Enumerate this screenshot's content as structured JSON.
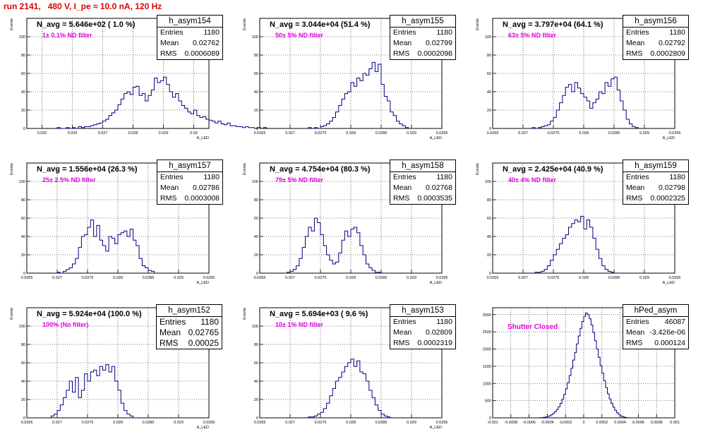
{
  "page_title": "run 2141,   480 V, I_pe ≈ 10.0 nA, 120 Hz",
  "colors": {
    "title": "#e00000",
    "histogram": "#000080",
    "annotation": "#e000e0",
    "grid": "#000000"
  },
  "chart_data": [
    {
      "type": "bar",
      "name": "h_asym154",
      "navg": "N_avg = 5.646e+02 ( 1.0 %)",
      "filter": "1± 0.1% ND filter",
      "stats": {
        "entries_label": "Entries",
        "entries": "1180",
        "mean_label": "Mean",
        "mean": "0.02762",
        "rms_label": "RMS",
        "rms": "0.0006089"
      },
      "xlabel": "A_LED",
      "ylabel": "Events",
      "xlim": [
        0.0245,
        0.0305
      ],
      "ylim": [
        0,
        120
      ],
      "xticks": [
        {
          "v": 0.025,
          "t": "0.025"
        },
        {
          "v": 0.026,
          "t": "0.026"
        },
        {
          "v": 0.027,
          "t": "0.027"
        },
        {
          "v": 0.028,
          "t": "0.028"
        },
        {
          "v": 0.029,
          "t": "0.029"
        },
        {
          "v": 0.03,
          "t": "0.03"
        }
      ],
      "yticks": [
        {
          "v": 0,
          "t": "0"
        },
        {
          "v": 20,
          "t": "20"
        },
        {
          "v": 40,
          "t": "40"
        },
        {
          "v": 60,
          "t": "60"
        },
        {
          "v": 80,
          "t": "80"
        },
        {
          "v": 100,
          "t": "100"
        }
      ],
      "bins": {
        "start": 0.0255,
        "width": 0.0001,
        "values": [
          1,
          0,
          0,
          1,
          0,
          1,
          0,
          2,
          1,
          2,
          2,
          3,
          4,
          5,
          6,
          8,
          10,
          14,
          17,
          20,
          26,
          32,
          38,
          40,
          37,
          45,
          46,
          36,
          38,
          30,
          36,
          42,
          55,
          50,
          52,
          56,
          48,
          40,
          34,
          38,
          30,
          25,
          22,
          18,
          16,
          20,
          14,
          12,
          13,
          10,
          9,
          8,
          6,
          8,
          5,
          4,
          6,
          3,
          3,
          2,
          2,
          1,
          2,
          1,
          1,
          0,
          1,
          0,
          1,
          0
        ]
      }
    },
    {
      "type": "bar",
      "name": "h_asym155",
      "navg": "N_avg = 3.044e+04 (51.4 %)",
      "filter": "50± 5% ND filter",
      "stats": {
        "entries_label": "Entries",
        "entries": "1180",
        "mean_label": "Mean",
        "mean": "0.02799",
        "rms_label": "RMS",
        "rms": "0.0002098"
      },
      "xlabel": "A_LED",
      "ylabel": "Events",
      "xlim": [
        0.0265,
        0.0295
      ],
      "ylim": [
        0,
        120
      ],
      "xticks": [
        {
          "v": 0.0265,
          "t": "0.0265"
        },
        {
          "v": 0.027,
          "t": "0.027"
        },
        {
          "v": 0.0275,
          "t": "0.0275"
        },
        {
          "v": 0.028,
          "t": "0.028"
        },
        {
          "v": 0.0285,
          "t": "0.0285"
        },
        {
          "v": 0.029,
          "t": "0.029"
        },
        {
          "v": 0.0295,
          "t": "0.0295"
        }
      ],
      "yticks": [
        {
          "v": 0,
          "t": "0"
        },
        {
          "v": 20,
          "t": "20"
        },
        {
          "v": 40,
          "t": "40"
        },
        {
          "v": 60,
          "t": "60"
        },
        {
          "v": 80,
          "t": "80"
        },
        {
          "v": 100,
          "t": "100"
        }
      ],
      "bins": {
        "start": 0.0273,
        "width": 5e-05,
        "values": [
          1,
          0,
          1,
          0,
          2,
          3,
          5,
          8,
          12,
          18,
          25,
          32,
          38,
          40,
          50,
          46,
          55,
          52,
          60,
          58,
          65,
          72,
          62,
          70,
          48,
          35,
          30,
          18,
          14,
          8,
          5,
          3,
          1
        ]
      }
    },
    {
      "type": "bar",
      "name": "h_asym156",
      "navg": "N_avg = 3.797e+04 (64.1 %)",
      "filter": "63± 5% ND filter",
      "stats": {
        "entries_label": "Entries",
        "entries": "1180",
        "mean_label": "Mean",
        "mean": "0.02792",
        "rms_label": "RMS",
        "rms": "0.0002809"
      },
      "xlabel": "A_LED",
      "ylabel": "Events",
      "xlim": [
        0.0265,
        0.0295
      ],
      "ylim": [
        0,
        120
      ],
      "xticks": [
        {
          "v": 0.0265,
          "t": "0.0265"
        },
        {
          "v": 0.027,
          "t": "0.027"
        },
        {
          "v": 0.0275,
          "t": "0.0275"
        },
        {
          "v": 0.028,
          "t": "0.028"
        },
        {
          "v": 0.0285,
          "t": "0.0285"
        },
        {
          "v": 0.029,
          "t": "0.029"
        },
        {
          "v": 0.0295,
          "t": "0.0295"
        }
      ],
      "yticks": [
        {
          "v": 0,
          "t": "0"
        },
        {
          "v": 20,
          "t": "20"
        },
        {
          "v": 40,
          "t": "40"
        },
        {
          "v": 60,
          "t": "60"
        },
        {
          "v": 80,
          "t": "80"
        },
        {
          "v": 100,
          "t": "100"
        }
      ],
      "bins": {
        "start": 0.02715,
        "width": 5e-05,
        "values": [
          1,
          0,
          1,
          2,
          3,
          4,
          8,
          12,
          20,
          28,
          36,
          45,
          48,
          40,
          50,
          44,
          38,
          34,
          30,
          22,
          28,
          32,
          40,
          38,
          50,
          46,
          54,
          56,
          42,
          30,
          20,
          10,
          5,
          2,
          1
        ]
      }
    },
    {
      "type": "bar",
      "name": "h_asym157",
      "navg": "N_avg = 1.556e+04 (26.3 %)",
      "filter": "25± 2.5% ND filter",
      "stats": {
        "entries_label": "Entries",
        "entries": "1180",
        "mean_label": "Mean",
        "mean": "0.02786",
        "rms_label": "RMS",
        "rms": "0.0003008"
      },
      "xlabel": "A_LED",
      "ylabel": "Events",
      "xlim": [
        0.0265,
        0.0295
      ],
      "ylim": [
        0,
        120
      ],
      "xticks": [
        {
          "v": 0.0265,
          "t": "0.0265"
        },
        {
          "v": 0.027,
          "t": "0.027"
        },
        {
          "v": 0.0275,
          "t": "0.0275"
        },
        {
          "v": 0.028,
          "t": "0.028"
        },
        {
          "v": 0.0285,
          "t": "0.0285"
        },
        {
          "v": 0.029,
          "t": "0.029"
        },
        {
          "v": 0.0295,
          "t": "0.0295"
        }
      ],
      "yticks": [
        {
          "v": 0,
          "t": "0"
        },
        {
          "v": 20,
          "t": "20"
        },
        {
          "v": 40,
          "t": "40"
        },
        {
          "v": 60,
          "t": "60"
        },
        {
          "v": 80,
          "t": "80"
        },
        {
          "v": 100,
          "t": "100"
        }
      ],
      "bins": {
        "start": 0.027,
        "width": 5e-05,
        "values": [
          1,
          0,
          2,
          4,
          6,
          10,
          16,
          28,
          40,
          42,
          50,
          58,
          40,
          52,
          36,
          30,
          24,
          40,
          38,
          32,
          42,
          44,
          46,
          40,
          48,
          36,
          30,
          16,
          8,
          6,
          3,
          2
        ]
      }
    },
    {
      "type": "bar",
      "name": "h_asym158",
      "navg": "N_avg = 4.754e+04 (80.3 %)",
      "filter": "79± 5% ND filter",
      "stats": {
        "entries_label": "Entries",
        "entries": "1180",
        "mean_label": "Mean",
        "mean": "0.02768",
        "rms_label": "RMS",
        "rms": "0.0003535"
      },
      "xlabel": "A_LED",
      "ylabel": "Events",
      "xlim": [
        0.0265,
        0.0295
      ],
      "ylim": [
        0,
        120
      ],
      "xticks": [
        {
          "v": 0.0265,
          "t": "0.0265"
        },
        {
          "v": 0.027,
          "t": "0.027"
        },
        {
          "v": 0.0275,
          "t": "0.0275"
        },
        {
          "v": 0.028,
          "t": "0.028"
        },
        {
          "v": 0.0285,
          "t": "0.0285"
        },
        {
          "v": 0.029,
          "t": "0.029"
        },
        {
          "v": 0.0295,
          "t": "0.0295"
        }
      ],
      "yticks": [
        {
          "v": 0,
          "t": "0"
        },
        {
          "v": 20,
          "t": "20"
        },
        {
          "v": 40,
          "t": "40"
        },
        {
          "v": 60,
          "t": "60"
        },
        {
          "v": 80,
          "t": "80"
        },
        {
          "v": 100,
          "t": "100"
        }
      ],
      "bins": {
        "start": 0.02695,
        "width": 5e-05,
        "values": [
          1,
          2,
          4,
          8,
          16,
          28,
          40,
          50,
          46,
          60,
          55,
          42,
          30,
          20,
          14,
          10,
          12,
          22,
          36,
          46,
          40,
          48,
          50,
          44,
          30,
          20,
          10,
          6,
          3,
          1,
          1
        ]
      }
    },
    {
      "type": "bar",
      "name": "h_asym159",
      "navg": "N_avg = 2.425e+04 (40.9 %)",
      "filter": "40± 4% ND filter",
      "stats": {
        "entries_label": "Entries",
        "entries": "1180",
        "mean_label": "Mean",
        "mean": "0.02798",
        "rms_label": "RMS",
        "rms": "0.0002325"
      },
      "xlabel": "A_LED",
      "ylabel": "Events",
      "xlim": [
        0.0265,
        0.0295
      ],
      "ylim": [
        0,
        120
      ],
      "xticks": [
        {
          "v": 0.0265,
          "t": "0.0265"
        },
        {
          "v": 0.027,
          "t": "0.027"
        },
        {
          "v": 0.0275,
          "t": "0.0275"
        },
        {
          "v": 0.028,
          "t": "0.028"
        },
        {
          "v": 0.0285,
          "t": "0.0285"
        },
        {
          "v": 0.029,
          "t": "0.029"
        },
        {
          "v": 0.0295,
          "t": "0.0295"
        }
      ],
      "yticks": [
        {
          "v": 0,
          "t": "0"
        },
        {
          "v": 20,
          "t": "20"
        },
        {
          "v": 40,
          "t": "40"
        },
        {
          "v": 60,
          "t": "60"
        },
        {
          "v": 80,
          "t": "80"
        },
        {
          "v": 100,
          "t": "100"
        }
      ],
      "bins": {
        "start": 0.0272,
        "width": 5e-05,
        "values": [
          1,
          1,
          2,
          4,
          8,
          14,
          20,
          26,
          32,
          38,
          42,
          50,
          54,
          58,
          56,
          62,
          48,
          58,
          50,
          38,
          26,
          16,
          8,
          4,
          2,
          1
        ]
      }
    },
    {
      "type": "bar",
      "name": "h_asym152",
      "navg": "N_avg = 5.924e+04 (100.0 %)",
      "filter": "100% (No filter)",
      "stats": {
        "entries_label": "Entries",
        "entries": "1180",
        "mean_label": "Mean",
        "mean": "0.02765",
        "rms_label": "RMS",
        "rms": "0.00025"
      },
      "xlabel": "A_LED",
      "ylabel": "Events",
      "xlim": [
        0.0265,
        0.0295
      ],
      "ylim": [
        0,
        120
      ],
      "xticks": [
        {
          "v": 0.0265,
          "t": "0.0265"
        },
        {
          "v": 0.027,
          "t": "0.027"
        },
        {
          "v": 0.0275,
          "t": "0.0275"
        },
        {
          "v": 0.028,
          "t": "0.028"
        },
        {
          "v": 0.0285,
          "t": "0.0285"
        },
        {
          "v": 0.029,
          "t": "0.029"
        },
        {
          "v": 0.0295,
          "t": "0.0295"
        }
      ],
      "yticks": [
        {
          "v": 0,
          "t": "0"
        },
        {
          "v": 20,
          "t": "20"
        },
        {
          "v": 40,
          "t": "40"
        },
        {
          "v": 60,
          "t": "60"
        },
        {
          "v": 80,
          "t": "80"
        },
        {
          "v": 100,
          "t": "100"
        }
      ],
      "bins": {
        "start": 0.0269,
        "width": 5e-05,
        "values": [
          2,
          4,
          8,
          14,
          22,
          30,
          40,
          28,
          44,
          22,
          30,
          48,
          40,
          50,
          52,
          46,
          56,
          52,
          58,
          50,
          56,
          40,
          30,
          16,
          8,
          4,
          2
        ]
      }
    },
    {
      "type": "bar",
      "name": "h_asym153",
      "navg": "N_avg = 5.694e+03 ( 9.6 %)",
      "filter": "10± 1% ND filter",
      "stats": {
        "entries_label": "Entries",
        "entries": "1180",
        "mean_label": "Mean",
        "mean": "0.02809",
        "rms_label": "RMS",
        "rms": "0.0002319"
      },
      "xlabel": "A_LED",
      "ylabel": "Events",
      "xlim": [
        0.0265,
        0.0295
      ],
      "ylim": [
        0,
        120
      ],
      "xticks": [
        {
          "v": 0.0265,
          "t": "0.0265"
        },
        {
          "v": 0.027,
          "t": "0.027"
        },
        {
          "v": 0.0275,
          "t": "0.0275"
        },
        {
          "v": 0.028,
          "t": "0.028"
        },
        {
          "v": 0.0285,
          "t": "0.0285"
        },
        {
          "v": 0.029,
          "t": "0.029"
        },
        {
          "v": 0.0295,
          "t": "0.0295"
        }
      ],
      "yticks": [
        {
          "v": 0,
          "t": "0"
        },
        {
          "v": 20,
          "t": "20"
        },
        {
          "v": 40,
          "t": "40"
        },
        {
          "v": 60,
          "t": "60"
        },
        {
          "v": 80,
          "t": "80"
        },
        {
          "v": 100,
          "t": "100"
        }
      ],
      "bins": {
        "start": 0.0273,
        "width": 5e-05,
        "values": [
          1,
          1,
          2,
          4,
          6,
          10,
          16,
          24,
          32,
          40,
          44,
          50,
          56,
          60,
          64,
          56,
          62,
          50,
          48,
          40,
          30,
          22,
          14,
          8,
          4,
          2,
          1
        ]
      }
    },
    {
      "type": "bar",
      "name": "hPed_asym",
      "navg": "",
      "filter": "Shutter Closed",
      "stats": {
        "entries_label": "Entries",
        "entries": "46087",
        "mean_label": "Mean",
        "mean": "-3.426e-06",
        "rms_label": "RMS",
        "rms": "0.000124"
      },
      "xlabel": "",
      "ylabel": "",
      "xlim": [
        -0.001,
        0.001
      ],
      "ylim": [
        0,
        3200
      ],
      "xticks": [
        {
          "v": -0.001,
          "t": "-0.001"
        },
        {
          "v": -0.0008,
          "t": "-0.0008"
        },
        {
          "v": -0.0006,
          "t": "-0.0006"
        },
        {
          "v": -0.0004,
          "t": "-0.0004"
        },
        {
          "v": -0.0002,
          "t": "-0.0002"
        },
        {
          "v": 0,
          "t": "0"
        },
        {
          "v": 0.0002,
          "t": "0.0002"
        },
        {
          "v": 0.0004,
          "t": "0.0004"
        },
        {
          "v": 0.0006,
          "t": "0.0006"
        },
        {
          "v": 0.0008,
          "t": "0.0008"
        },
        {
          "v": 0.001,
          "t": "0.001"
        }
      ],
      "yticks": [
        {
          "v": 0,
          "t": "0"
        },
        {
          "v": 500,
          "t": "500"
        },
        {
          "v": 1000,
          "t": "1000"
        },
        {
          "v": 1500,
          "t": "1500"
        },
        {
          "v": 2000,
          "t": "2000"
        },
        {
          "v": 2500,
          "t": "2500"
        },
        {
          "v": 3000,
          "t": "3000"
        }
      ],
      "bins": {
        "start": -0.0005,
        "width": 2e-05,
        "values": [
          2,
          4,
          8,
          15,
          25,
          40,
          60,
          90,
          130,
          180,
          240,
          320,
          420,
          540,
          680,
          840,
          1020,
          1230,
          1440,
          1680,
          1900,
          2150,
          2380,
          2600,
          2800,
          2950,
          3050,
          3000,
          2880,
          2700,
          2480,
          2240,
          2000,
          1760,
          1520,
          1300,
          1080,
          880,
          700,
          550,
          420,
          310,
          220,
          150,
          100,
          60,
          35,
          18,
          8,
          3
        ]
      }
    }
  ]
}
